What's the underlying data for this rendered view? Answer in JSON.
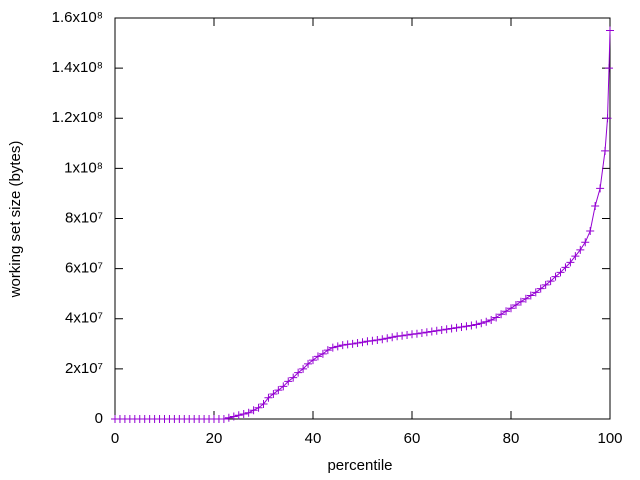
{
  "chart_data": {
    "type": "line",
    "xlabel": "percentile",
    "ylabel": "working set size (bytes)",
    "xlim": [
      0,
      100
    ],
    "ylim": [
      0,
      160000000
    ],
    "xticks": [
      0,
      20,
      40,
      60,
      80,
      100
    ],
    "yticks": [
      0,
      {
        "value": 20000000,
        "label": "2x10⁷"
      },
      {
        "value": 40000000,
        "label": "4x10⁷"
      },
      {
        "value": 60000000,
        "label": "6x10⁷"
      },
      {
        "value": 80000000,
        "label": "8x10⁷"
      },
      {
        "value": 100000000,
        "label": "1x10⁸"
      },
      {
        "value": 120000000,
        "label": "1.2x10⁸"
      },
      {
        "value": 140000000,
        "label": "1.4x10⁸"
      },
      {
        "value": 160000000,
        "label": "1.6x10⁸"
      }
    ],
    "series": [
      {
        "color": "#9400d3",
        "x": [
          0,
          1,
          2,
          3,
          4,
          5,
          6,
          7,
          8,
          9,
          10,
          11,
          12,
          13,
          14,
          15,
          16,
          17,
          18,
          19,
          20,
          21,
          22,
          23,
          24,
          25,
          26,
          27,
          28,
          29,
          30,
          31,
          32,
          33,
          34,
          35,
          36,
          37,
          38,
          39,
          40,
          41,
          42,
          43,
          44,
          45,
          46,
          47,
          48,
          49,
          50,
          51,
          52,
          53,
          54,
          55,
          56,
          57,
          58,
          59,
          60,
          61,
          62,
          63,
          64,
          65,
          66,
          67,
          68,
          69,
          70,
          71,
          72,
          73,
          74,
          75,
          76,
          77,
          78,
          79,
          80,
          81,
          82,
          83,
          84,
          85,
          86,
          87,
          88,
          89,
          90,
          91,
          92,
          93,
          94,
          95,
          96,
          97,
          98,
          99,
          99.5,
          99.8,
          100
        ],
        "values": [
          0,
          0,
          0,
          0,
          0,
          0,
          0,
          0,
          0,
          0,
          0,
          0,
          0,
          0,
          0,
          0,
          0,
          0,
          0,
          0,
          0,
          0,
          0,
          500000,
          1000000,
          1500000,
          2000000,
          2500000,
          3500000,
          4500000,
          6000000,
          8500000,
          10000000,
          11500000,
          13000000,
          15000000,
          16500000,
          18500000,
          20000000,
          22000000,
          23500000,
          25000000,
          26000000,
          27500000,
          28500000,
          29000000,
          29500000,
          29800000,
          30000000,
          30300000,
          30600000,
          31000000,
          31200000,
          31500000,
          31800000,
          32200000,
          32600000,
          33000000,
          33200000,
          33500000,
          33800000,
          34000000,
          34300000,
          34600000,
          34900000,
          35200000,
          35500000,
          35800000,
          36100000,
          36400000,
          36700000,
          37000000,
          37300000,
          37700000,
          38200000,
          38800000,
          39500000,
          40500000,
          41800000,
          43000000,
          44200000,
          45500000,
          46800000,
          48000000,
          49300000,
          50500000,
          52000000,
          53500000,
          55000000,
          56800000,
          58500000,
          60500000,
          62500000,
          65000000,
          67500000,
          70500000,
          75000000,
          85000000,
          92000000,
          107000000,
          120000000,
          140000000,
          155000000
        ]
      }
    ]
  }
}
